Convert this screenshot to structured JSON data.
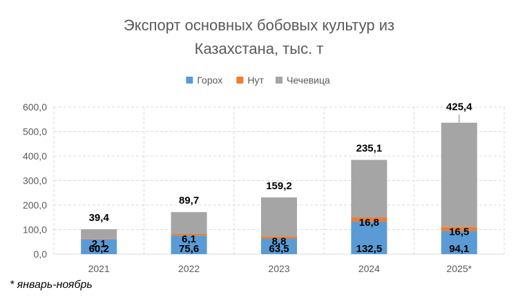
{
  "chart_data": {
    "type": "bar",
    "stacked": true,
    "title": "Экспорт основных бобовых культур из Казахстана, тыс. т",
    "title_lines": [
      "Экспорт основных бобовых культур из",
      "Казахстана, тыс. т"
    ],
    "categories": [
      "2021",
      "2022",
      "2023",
      "2024",
      "2025*"
    ],
    "series": [
      {
        "name": "Горох",
        "color": "#5B9BD5",
        "values": [
          60.2,
          75.6,
          63.5,
          132.5,
          94.1
        ],
        "labels": [
          "60,2",
          "75,6",
          "63,5",
          "132,5",
          "94,1"
        ]
      },
      {
        "name": "Нут",
        "color": "#ED7D31",
        "values": [
          2.1,
          6.1,
          8.8,
          16.8,
          16.5
        ],
        "labels": [
          "2,1",
          "6,1",
          "8,8",
          "16,8",
          "16,5"
        ]
      },
      {
        "name": "Чечевица",
        "color": "#A5A5A5",
        "values": [
          39.4,
          89.7,
          159.2,
          235.1,
          425.4
        ],
        "labels": [
          "39,4",
          "89,7",
          "159,2",
          "235,1",
          "425,4"
        ]
      }
    ],
    "ylim": [
      0,
      600
    ],
    "yticks": [
      "0,0",
      "100,0",
      "200,0",
      "300,0",
      "400,0",
      "500,0",
      "600,0"
    ],
    "ytick_values": [
      0,
      100,
      200,
      300,
      400,
      500,
      600
    ],
    "axis_break_series_index": 4,
    "grid": true,
    "legend_position": "top",
    "xlabel": "",
    "ylabel": ""
  },
  "footnote": "* январь-ноябрь"
}
